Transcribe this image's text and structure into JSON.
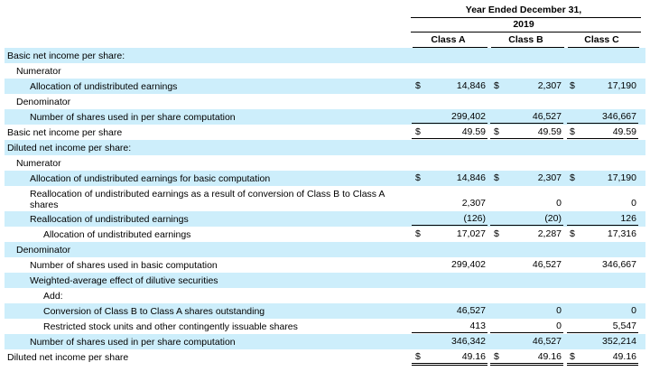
{
  "header": {
    "title": "Year Ended December 31,",
    "year": "2019",
    "columns": [
      "Class A",
      "Class B",
      "Class C"
    ]
  },
  "rows": [
    {
      "label": "Basic net income per share:"
    },
    {
      "label": "Numerator"
    },
    {
      "label": "Allocation of undistributed earnings",
      "cells": [
        {
          "symbol": "$",
          "value": "14,846"
        },
        {
          "symbol": "$",
          "value": "2,307"
        },
        {
          "symbol": "$",
          "value": "17,190"
        }
      ]
    },
    {
      "label": "Denominator"
    },
    {
      "label": "Number of shares used in per share computation",
      "cells": [
        {
          "value": "299,402"
        },
        {
          "value": "46,527"
        },
        {
          "value": "346,667"
        }
      ]
    },
    {
      "label": "Basic net income per share",
      "cells": [
        {
          "symbol": "$",
          "value": "49.59"
        },
        {
          "symbol": "$",
          "value": "49.59"
        },
        {
          "symbol": "$",
          "value": "49.59"
        }
      ]
    },
    {
      "label": "Diluted net income per share:"
    },
    {
      "label": "Numerator"
    },
    {
      "label": "Allocation of undistributed earnings for basic computation",
      "cells": [
        {
          "symbol": "$",
          "value": "14,846"
        },
        {
          "symbol": "$",
          "value": "2,307"
        },
        {
          "symbol": "$",
          "value": "17,190"
        }
      ]
    },
    {
      "label": "Reallocation of undistributed earnings as a result of conversion of Class B to Class A shares",
      "cells": [
        {
          "value": "2,307"
        },
        {
          "value": "0"
        },
        {
          "value": "0"
        }
      ]
    },
    {
      "label": "Reallocation of undistributed earnings",
      "cells": [
        {
          "value": "(126)"
        },
        {
          "value": "(20)"
        },
        {
          "value": "126"
        }
      ]
    },
    {
      "label": "Allocation of undistributed earnings",
      "cells": [
        {
          "symbol": "$",
          "value": "17,027"
        },
        {
          "symbol": "$",
          "value": "2,287"
        },
        {
          "symbol": "$",
          "value": "17,316"
        }
      ]
    },
    {
      "label": "Denominator"
    },
    {
      "label": "Number of shares used in basic computation",
      "cells": [
        {
          "value": "299,402"
        },
        {
          "value": "46,527"
        },
        {
          "value": "346,667"
        }
      ]
    },
    {
      "label": "Weighted-average effect of dilutive securities"
    },
    {
      "label": "Add:"
    },
    {
      "label": "Conversion of Class B to Class A shares outstanding",
      "cells": [
        {
          "value": "46,527"
        },
        {
          "value": "0"
        },
        {
          "value": "0"
        }
      ]
    },
    {
      "label": "Restricted stock units and other contingently issuable shares",
      "cells": [
        {
          "value": "413"
        },
        {
          "value": "0"
        },
        {
          "value": "5,547"
        }
      ]
    },
    {
      "label": "Number of shares used in per share computation",
      "cells": [
        {
          "value": "346,342"
        },
        {
          "value": "46,527"
        },
        {
          "value": "352,214"
        }
      ]
    },
    {
      "label": "Diluted net income per share",
      "cells": [
        {
          "symbol": "$",
          "value": "49.16"
        },
        {
          "symbol": "$",
          "value": "49.16"
        },
        {
          "symbol": "$",
          "value": "49.16"
        }
      ]
    }
  ]
}
